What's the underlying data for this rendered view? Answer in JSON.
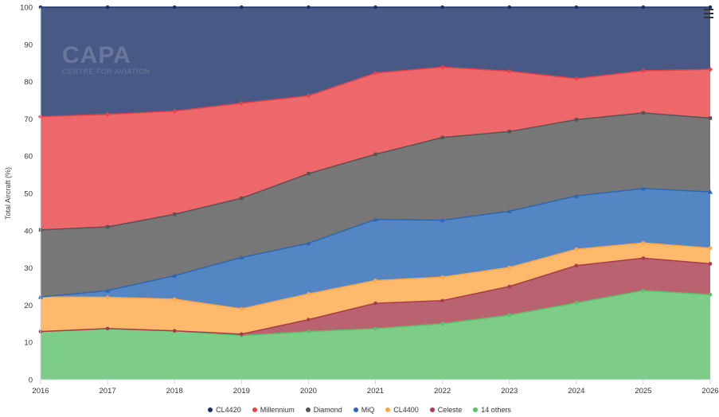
{
  "chart_data": {
    "type": "area",
    "stacked": true,
    "title": "",
    "xlabel": "",
    "ylabel": "Total Aircraft (%)",
    "ylim": [
      0,
      100
    ],
    "yticks": [
      0,
      10,
      20,
      30,
      40,
      50,
      60,
      70,
      80,
      90,
      100
    ],
    "grid": false,
    "legend_position": "bottom",
    "x": [
      "2016",
      "2017",
      "2018",
      "2019",
      "2020",
      "2021",
      "2022",
      "2023",
      "2024",
      "2025",
      "2026"
    ],
    "series": [
      {
        "name": "14 others",
        "color": "#5cbf6a",
        "marker": "circle",
        "values": [
          12.9,
          13.7,
          13.1,
          11.8,
          12.9,
          13.7,
          15.0,
          17.3,
          20.6,
          23.9,
          22.8
        ]
      },
      {
        "name": "Celeste",
        "color": "#a83c4e",
        "marker": "circle",
        "values": [
          0,
          0,
          0,
          0.4,
          3.2,
          6.8,
          6.2,
          7.7,
          10.0,
          8.7,
          8.3
        ]
      },
      {
        "name": "CL4400",
        "color": "#ffa747",
        "marker": "circle",
        "values": [
          9.3,
          8.4,
          8.5,
          6.8,
          6.9,
          6.1,
          6.3,
          5.1,
          4.4,
          4.1,
          4.2
        ]
      },
      {
        "name": "MiQ",
        "color": "#2a68b5",
        "marker": "triangle",
        "values": [
          0,
          1.8,
          6.3,
          13.8,
          13.6,
          16.4,
          15.3,
          15.1,
          14.3,
          14.6,
          15.1
        ]
      },
      {
        "name": "Diamond",
        "color": "#555555",
        "marker": "square",
        "values": [
          18.0,
          17.1,
          16.5,
          15.9,
          18.7,
          17.5,
          22.2,
          21.4,
          20.5,
          20.3,
          19.8
        ]
      },
      {
        "name": "Millennium",
        "color": "#e84246",
        "marker": "diamond",
        "values": [
          30.4,
          30.2,
          27.7,
          25.5,
          20.9,
          21.8,
          18.9,
          16.2,
          11.0,
          11.3,
          13.1
        ]
      },
      {
        "name": "CL4420",
        "color": "#1c2f66",
        "marker": "circle",
        "values": [
          29.4,
          28.8,
          27.9,
          25.8,
          23.8,
          17.7,
          16.1,
          17.2,
          19.2,
          17.1,
          16.7
        ]
      }
    ],
    "legend_order": [
      "CL4420",
      "Millennium",
      "Diamond",
      "MiQ",
      "CL4400",
      "Celeste",
      "14 others"
    ]
  },
  "watermark": {
    "logo": "CAPA",
    "sub": "CENTRE FOR AVIATION"
  },
  "menu_icon": "hamburger-menu-icon"
}
